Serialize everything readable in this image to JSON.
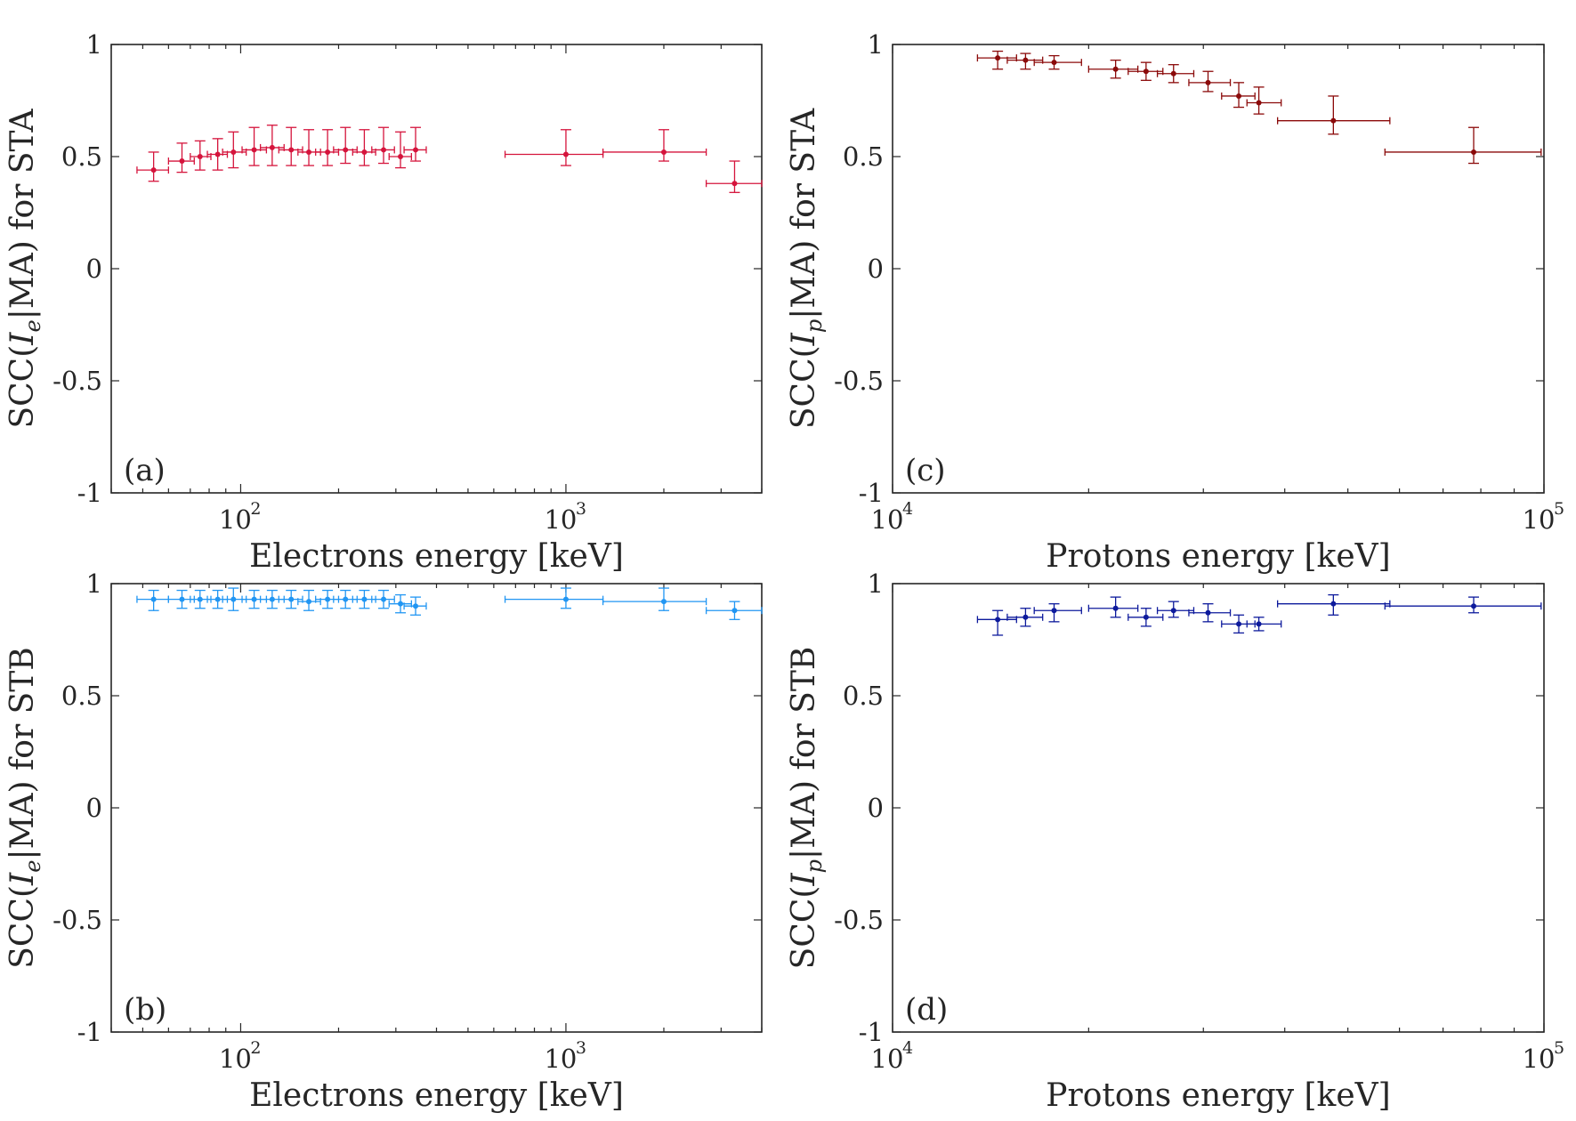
{
  "chart_data": [
    {
      "type": "scatter",
      "id": "a",
      "panel_label": "(a)",
      "xscale": "log",
      "xlim": [
        40,
        4000
      ],
      "ylim": [
        -1,
        1
      ],
      "xticks": [
        {
          "base": "10",
          "exp": "2"
        },
        {
          "base": "10",
          "exp": "3"
        }
      ],
      "yticks": [
        "1",
        "0.5",
        "0",
        "-0.5",
        "-1"
      ],
      "xlabel": "Electrons energy [keV]",
      "ylabel": {
        "prefix": "SCC(",
        "var": "I",
        "sub": "e",
        "suffix": "|MA) for STA"
      },
      "color": "#d5143c",
      "points": [
        {
          "x": 54,
          "xlo": 48,
          "xhi": 60,
          "y": 0.44,
          "ylo": 0.39,
          "yhi": 0.52
        },
        {
          "x": 66,
          "xlo": 60,
          "xhi": 72,
          "y": 0.48,
          "ylo": 0.43,
          "yhi": 0.56
        },
        {
          "x": 75,
          "xlo": 70,
          "xhi": 81,
          "y": 0.5,
          "ylo": 0.44,
          "yhi": 0.57
        },
        {
          "x": 85,
          "xlo": 79,
          "xhi": 91,
          "y": 0.51,
          "ylo": 0.44,
          "yhi": 0.58
        },
        {
          "x": 95,
          "xlo": 88,
          "xhi": 104,
          "y": 0.52,
          "ylo": 0.45,
          "yhi": 0.61
        },
        {
          "x": 110,
          "xlo": 101,
          "xhi": 120,
          "y": 0.53,
          "ylo": 0.46,
          "yhi": 0.63
        },
        {
          "x": 125,
          "xlo": 115,
          "xhi": 136,
          "y": 0.54,
          "ylo": 0.46,
          "yhi": 0.64
        },
        {
          "x": 143,
          "xlo": 131,
          "xhi": 155,
          "y": 0.53,
          "ylo": 0.46,
          "yhi": 0.63
        },
        {
          "x": 162,
          "xlo": 150,
          "xhi": 176,
          "y": 0.52,
          "ylo": 0.46,
          "yhi": 0.62
        },
        {
          "x": 185,
          "xlo": 170,
          "xhi": 200,
          "y": 0.52,
          "ylo": 0.46,
          "yhi": 0.62
        },
        {
          "x": 210,
          "xlo": 193,
          "xhi": 228,
          "y": 0.53,
          "ylo": 0.47,
          "yhi": 0.63
        },
        {
          "x": 240,
          "xlo": 221,
          "xhi": 260,
          "y": 0.52,
          "ylo": 0.46,
          "yhi": 0.62
        },
        {
          "x": 275,
          "xlo": 253,
          "xhi": 297,
          "y": 0.53,
          "ylo": 0.47,
          "yhi": 0.63
        },
        {
          "x": 310,
          "xlo": 286,
          "xhi": 335,
          "y": 0.5,
          "ylo": 0.45,
          "yhi": 0.61
        },
        {
          "x": 345,
          "xlo": 318,
          "xhi": 372,
          "y": 0.53,
          "ylo": 0.48,
          "yhi": 0.63
        },
        {
          "x": 1000,
          "xlo": 650,
          "xhi": 1300,
          "y": 0.51,
          "ylo": 0.46,
          "yhi": 0.62
        },
        {
          "x": 2000,
          "xlo": 1300,
          "xhi": 2700,
          "y": 0.52,
          "ylo": 0.48,
          "yhi": 0.62
        },
        {
          "x": 3300,
          "xlo": 2700,
          "xhi": 4000,
          "y": 0.38,
          "ylo": 0.34,
          "yhi": 0.48
        }
      ]
    },
    {
      "type": "scatter",
      "id": "b",
      "panel_label": "(b)",
      "xscale": "log",
      "xlim": [
        40,
        4000
      ],
      "ylim": [
        -1,
        1
      ],
      "xticks": [
        {
          "base": "10",
          "exp": "2"
        },
        {
          "base": "10",
          "exp": "3"
        }
      ],
      "yticks": [
        "1",
        "0.5",
        "0",
        "-0.5",
        "-1"
      ],
      "xlabel": "Electrons energy [keV]",
      "ylabel": {
        "prefix": "SCC(",
        "var": "I",
        "sub": "e",
        "suffix": "|MA) for STB"
      },
      "color": "#2196f3",
      "points": [
        {
          "x": 54,
          "xlo": 48,
          "xhi": 60,
          "y": 0.93,
          "ylo": 0.88,
          "yhi": 0.97
        },
        {
          "x": 66,
          "xlo": 60,
          "xhi": 72,
          "y": 0.93,
          "ylo": 0.89,
          "yhi": 0.97
        },
        {
          "x": 75,
          "xlo": 70,
          "xhi": 81,
          "y": 0.93,
          "ylo": 0.89,
          "yhi": 0.97
        },
        {
          "x": 85,
          "xlo": 79,
          "xhi": 91,
          "y": 0.93,
          "ylo": 0.89,
          "yhi": 0.97
        },
        {
          "x": 95,
          "xlo": 88,
          "xhi": 104,
          "y": 0.93,
          "ylo": 0.88,
          "yhi": 0.98
        },
        {
          "x": 110,
          "xlo": 101,
          "xhi": 120,
          "y": 0.93,
          "ylo": 0.89,
          "yhi": 0.97
        },
        {
          "x": 125,
          "xlo": 115,
          "xhi": 136,
          "y": 0.93,
          "ylo": 0.89,
          "yhi": 0.97
        },
        {
          "x": 143,
          "xlo": 131,
          "xhi": 155,
          "y": 0.93,
          "ylo": 0.89,
          "yhi": 0.97
        },
        {
          "x": 162,
          "xlo": 150,
          "xhi": 176,
          "y": 0.92,
          "ylo": 0.88,
          "yhi": 0.97
        },
        {
          "x": 185,
          "xlo": 170,
          "xhi": 200,
          "y": 0.93,
          "ylo": 0.89,
          "yhi": 0.97
        },
        {
          "x": 210,
          "xlo": 193,
          "xhi": 228,
          "y": 0.93,
          "ylo": 0.89,
          "yhi": 0.97
        },
        {
          "x": 240,
          "xlo": 221,
          "xhi": 260,
          "y": 0.93,
          "ylo": 0.89,
          "yhi": 0.97
        },
        {
          "x": 275,
          "xlo": 253,
          "xhi": 297,
          "y": 0.93,
          "ylo": 0.89,
          "yhi": 0.97
        },
        {
          "x": 310,
          "xlo": 286,
          "xhi": 335,
          "y": 0.91,
          "ylo": 0.87,
          "yhi": 0.95
        },
        {
          "x": 345,
          "xlo": 318,
          "xhi": 372,
          "y": 0.9,
          "ylo": 0.86,
          "yhi": 0.94
        },
        {
          "x": 1000,
          "xlo": 650,
          "xhi": 1300,
          "y": 0.93,
          "ylo": 0.89,
          "yhi": 0.98
        },
        {
          "x": 2000,
          "xlo": 1300,
          "xhi": 2700,
          "y": 0.92,
          "ylo": 0.88,
          "yhi": 0.98
        },
        {
          "x": 3300,
          "xlo": 2700,
          "xhi": 4000,
          "y": 0.88,
          "ylo": 0.84,
          "yhi": 0.92
        }
      ]
    },
    {
      "type": "scatter",
      "id": "c",
      "panel_label": "(c)",
      "xscale": "log",
      "xlim": [
        10000,
        100000
      ],
      "ylim": [
        -1,
        1
      ],
      "xticks": [
        {
          "base": "10",
          "exp": "4"
        },
        {
          "base": "10",
          "exp": "5"
        }
      ],
      "yticks": [
        "1",
        "0.5",
        "0",
        "-0.5",
        "-1"
      ],
      "xlabel": "Protons energy [keV]",
      "ylabel": {
        "prefix": "SCC(",
        "var": "I",
        "sub": "p",
        "suffix": "|MA) for STA"
      },
      "color": "#8b0a0a",
      "points": [
        {
          "x": 14500,
          "xlo": 13500,
          "xhi": 15500,
          "y": 0.94,
          "ylo": 0.89,
          "yhi": 0.97
        },
        {
          "x": 16000,
          "xlo": 15000,
          "xhi": 17000,
          "y": 0.93,
          "ylo": 0.89,
          "yhi": 0.96
        },
        {
          "x": 17700,
          "xlo": 16500,
          "xhi": 19500,
          "y": 0.92,
          "ylo": 0.89,
          "yhi": 0.95
        },
        {
          "x": 22000,
          "xlo": 20000,
          "xhi": 23800,
          "y": 0.89,
          "ylo": 0.85,
          "yhi": 0.93
        },
        {
          "x": 24500,
          "xlo": 23000,
          "xhi": 26000,
          "y": 0.88,
          "ylo": 0.84,
          "yhi": 0.92
        },
        {
          "x": 27000,
          "xlo": 25500,
          "xhi": 29000,
          "y": 0.87,
          "ylo": 0.83,
          "yhi": 0.91
        },
        {
          "x": 30500,
          "xlo": 28500,
          "xhi": 33000,
          "y": 0.83,
          "ylo": 0.79,
          "yhi": 0.88
        },
        {
          "x": 34000,
          "xlo": 32000,
          "xhi": 36000,
          "y": 0.77,
          "ylo": 0.72,
          "yhi": 0.83
        },
        {
          "x": 36500,
          "xlo": 35000,
          "xhi": 39500,
          "y": 0.74,
          "ylo": 0.69,
          "yhi": 0.81
        },
        {
          "x": 47500,
          "xlo": 39000,
          "xhi": 58000,
          "y": 0.66,
          "ylo": 0.6,
          "yhi": 0.77
        },
        {
          "x": 78000,
          "xlo": 57000,
          "xhi": 99000,
          "y": 0.52,
          "ylo": 0.47,
          "yhi": 0.63
        }
      ]
    },
    {
      "type": "scatter",
      "id": "d",
      "panel_label": "(d)",
      "xscale": "log",
      "xlim": [
        10000,
        100000
      ],
      "ylim": [
        -1,
        1
      ],
      "xticks": [
        {
          "base": "10",
          "exp": "4"
        },
        {
          "base": "10",
          "exp": "5"
        }
      ],
      "yticks": [
        "1",
        "0.5",
        "0",
        "-0.5",
        "-1"
      ],
      "xlabel": "Protons energy [keV]",
      "ylabel": {
        "prefix": "SCC(",
        "var": "I",
        "sub": "p",
        "suffix": "|MA) for STB"
      },
      "color": "#0d1a9c",
      "points": [
        {
          "x": 14500,
          "xlo": 13500,
          "xhi": 15500,
          "y": 0.84,
          "ylo": 0.77,
          "yhi": 0.88
        },
        {
          "x": 16000,
          "xlo": 15000,
          "xhi": 17000,
          "y": 0.85,
          "ylo": 0.81,
          "yhi": 0.89
        },
        {
          "x": 17700,
          "xlo": 16500,
          "xhi": 19500,
          "y": 0.88,
          "ylo": 0.83,
          "yhi": 0.91
        },
        {
          "x": 22000,
          "xlo": 20000,
          "xhi": 23800,
          "y": 0.89,
          "ylo": 0.85,
          "yhi": 0.94
        },
        {
          "x": 24500,
          "xlo": 23000,
          "xhi": 26000,
          "y": 0.85,
          "ylo": 0.81,
          "yhi": 0.89
        },
        {
          "x": 27000,
          "xlo": 25500,
          "xhi": 29000,
          "y": 0.88,
          "ylo": 0.85,
          "yhi": 0.92
        },
        {
          "x": 30500,
          "xlo": 28500,
          "xhi": 33000,
          "y": 0.87,
          "ylo": 0.83,
          "yhi": 0.91
        },
        {
          "x": 34000,
          "xlo": 32000,
          "xhi": 36000,
          "y": 0.82,
          "ylo": 0.78,
          "yhi": 0.86
        },
        {
          "x": 36500,
          "xlo": 35000,
          "xhi": 39500,
          "y": 0.82,
          "ylo": 0.79,
          "yhi": 0.85
        },
        {
          "x": 47500,
          "xlo": 39000,
          "xhi": 58000,
          "y": 0.91,
          "ylo": 0.86,
          "yhi": 0.95
        },
        {
          "x": 78000,
          "xlo": 57000,
          "xhi": 99000,
          "y": 0.9,
          "ylo": 0.87,
          "yhi": 0.94
        }
      ]
    }
  ]
}
